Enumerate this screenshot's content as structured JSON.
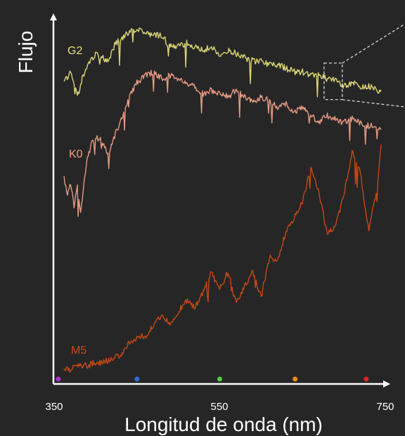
{
  "chart_data": {
    "type": "line",
    "title": "",
    "xlabel": "Longitud de onda (nm)",
    "ylabel": "Flujo",
    "xlim": [
      350,
      750
    ],
    "ylim": [
      0,
      1
    ],
    "x_ticks": [
      "350",
      "550",
      "750"
    ],
    "grid": false,
    "legend": "none",
    "colors": {
      "background": "#262626",
      "axis": "#ffffff",
      "G2": "#e6e07a",
      "K0": "#f0a088",
      "M5": "#cc4a14"
    },
    "series": [
      {
        "name": "G2",
        "label": "G2",
        "x": [
          362,
          370,
          378,
          385,
          392,
          400,
          408,
          416,
          424,
          432,
          440,
          450,
          460,
          470,
          480,
          490,
          500,
          510,
          520,
          530,
          540,
          550,
          560,
          570,
          580,
          590,
          600,
          610,
          620,
          630,
          640,
          650,
          660,
          670,
          680,
          690,
          700,
          710,
          720,
          730,
          740,
          745
        ],
        "y": [
          0.83,
          0.86,
          0.79,
          0.85,
          0.88,
          0.91,
          0.9,
          0.89,
          0.94,
          0.95,
          0.97,
          0.98,
          0.97,
          0.96,
          0.96,
          0.93,
          0.93,
          0.94,
          0.93,
          0.92,
          0.93,
          0.91,
          0.92,
          0.91,
          0.9,
          0.89,
          0.89,
          0.88,
          0.88,
          0.87,
          0.86,
          0.86,
          0.85,
          0.85,
          0.84,
          0.84,
          0.82,
          0.83,
          0.82,
          0.82,
          0.81,
          0.81
        ]
      },
      {
        "name": "K0",
        "label": "K0",
        "x": [
          362,
          366,
          370,
          374,
          378,
          382,
          386,
          390,
          395,
          400,
          408,
          416,
          424,
          432,
          440,
          450,
          460,
          470,
          480,
          490,
          500,
          510,
          520,
          530,
          540,
          550,
          560,
          570,
          580,
          590,
          600,
          610,
          620,
          630,
          640,
          650,
          660,
          670,
          680,
          690,
          700,
          710,
          720,
          730,
          740,
          745
        ],
        "y": [
          0.57,
          0.52,
          0.55,
          0.49,
          0.54,
          0.48,
          0.55,
          0.62,
          0.66,
          0.68,
          0.67,
          0.63,
          0.69,
          0.73,
          0.79,
          0.83,
          0.85,
          0.86,
          0.84,
          0.85,
          0.84,
          0.83,
          0.82,
          0.8,
          0.81,
          0.8,
          0.79,
          0.81,
          0.79,
          0.78,
          0.79,
          0.78,
          0.76,
          0.77,
          0.75,
          0.76,
          0.74,
          0.72,
          0.74,
          0.73,
          0.72,
          0.73,
          0.72,
          0.71,
          0.71,
          0.7
        ]
      },
      {
        "name": "M5",
        "label": "M5",
        "x": [
          362,
          370,
          380,
          390,
          400,
          410,
          420,
          430,
          440,
          450,
          460,
          470,
          480,
          490,
          500,
          510,
          520,
          530,
          540,
          550,
          560,
          570,
          580,
          590,
          600,
          610,
          620,
          630,
          640,
          650,
          660,
          670,
          680,
          690,
          700,
          710,
          720,
          730,
          740,
          745
        ],
        "y": [
          0.04,
          0.04,
          0.05,
          0.05,
          0.06,
          0.06,
          0.07,
          0.08,
          0.11,
          0.13,
          0.13,
          0.16,
          0.19,
          0.17,
          0.2,
          0.23,
          0.21,
          0.25,
          0.31,
          0.26,
          0.31,
          0.22,
          0.27,
          0.31,
          0.24,
          0.35,
          0.34,
          0.42,
          0.46,
          0.5,
          0.6,
          0.53,
          0.41,
          0.44,
          0.52,
          0.64,
          0.58,
          0.42,
          0.54,
          0.66
        ]
      }
    ],
    "markers": {
      "x": [
        355,
        450,
        550,
        641,
        727
      ],
      "colors": [
        "#b030c8",
        "#2f6cd6",
        "#4fcf3a",
        "#f08a1c",
        "#e22020"
      ]
    },
    "annotation": {
      "type": "zoom-box",
      "series": "G2",
      "xlim": [
        676,
        698
      ]
    }
  }
}
